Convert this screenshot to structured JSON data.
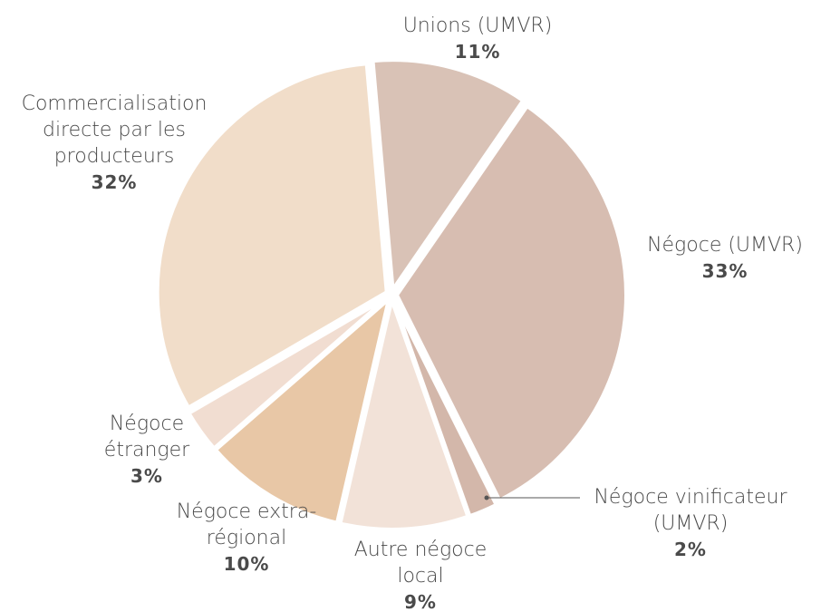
{
  "chart_data": {
    "type": "pie",
    "categories": [
      "Unions (UMVR)",
      "Négoce (UMVR)",
      "Négoce vinificateur (UMVR)",
      "Autre négoce local",
      "Négoce extra-régional",
      "Négoce étranger",
      "Commercialisation directe par les producteurs"
    ],
    "values": [
      11,
      33,
      2,
      9,
      10,
      3,
      32
    ],
    "value_labels": [
      "11%",
      "33%",
      "2%",
      "9%",
      "10%",
      "3%",
      "32%"
    ],
    "colors": [
      "#d9c2b6",
      "#d7bdb1",
      "#d3b7aa",
      "#f2e2d8",
      "#e8c7a6",
      "#f1ddd1",
      "#f1ddc9"
    ]
  }
}
